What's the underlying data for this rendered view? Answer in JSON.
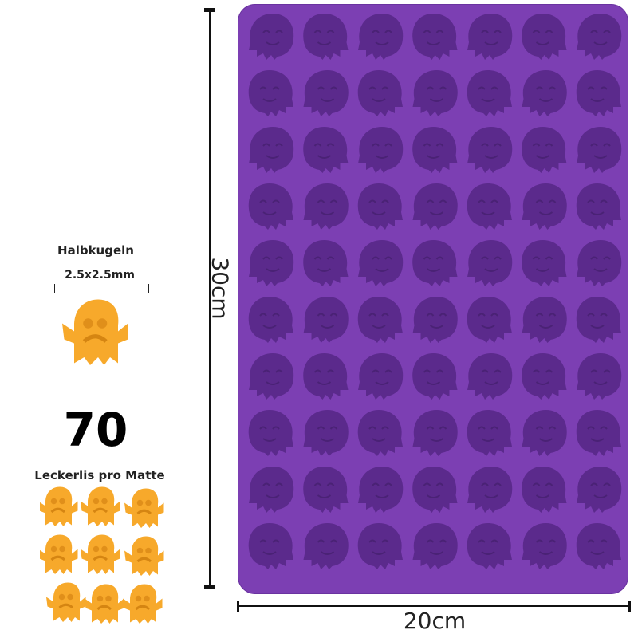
{
  "product": {
    "mold_color": "#7c3fb3",
    "cavity_color": "#5b2a8c",
    "treat_color": "#f7a92b",
    "grid": {
      "columns": 7,
      "rows": 10
    },
    "height_label": "30cm",
    "width_label": "20cm"
  },
  "info": {
    "shape_label": "Halbkugeln",
    "size_label": "2.5x2.5mm",
    "count": "70",
    "count_label": "Leckerlis pro Matte"
  }
}
